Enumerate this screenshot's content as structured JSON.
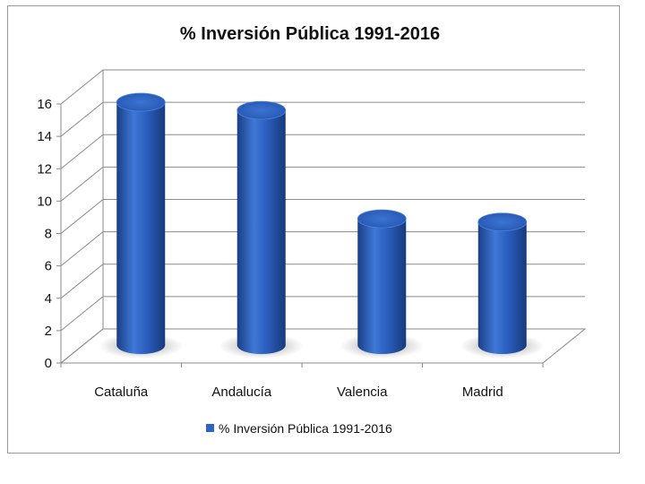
{
  "chart_data": {
    "type": "bar",
    "title": "% Inversión Pública 1991-2016",
    "categories": [
      "Cataluña",
      "Andalucía",
      "Valencia",
      "Madrid"
    ],
    "series": [
      {
        "name": "% Inversión Pública 1991-2016",
        "values": [
          15.0,
          14.5,
          7.8,
          7.6
        ],
        "color": "#2f64c4"
      }
    ],
    "ylim": [
      0,
      16
    ],
    "yticks": [
      "0",
      "2",
      "4",
      "6",
      "8",
      "10",
      "12",
      "14",
      "16"
    ],
    "grid": true,
    "legend": "bottom",
    "style": "3d-cylinder"
  }
}
